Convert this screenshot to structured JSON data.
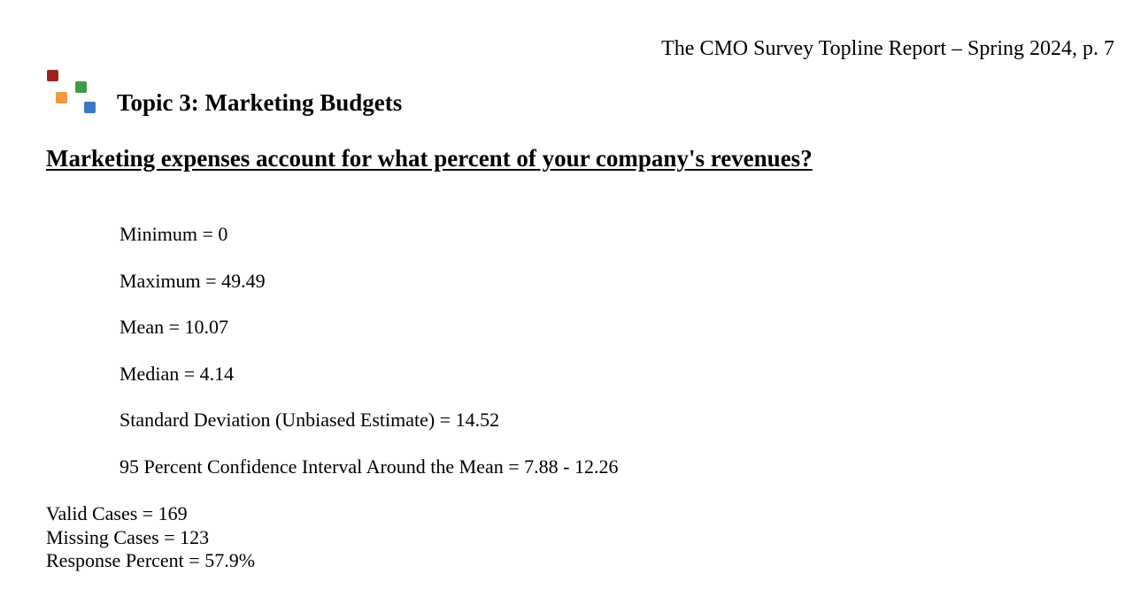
{
  "header": {
    "running_title": "The CMO Survey Topline Report – Spring 2024, p. 7"
  },
  "logo": {
    "colors": [
      "#9b2220",
      "#3f9b47",
      "#ee9a3c",
      "#3b78c2"
    ]
  },
  "topic": {
    "title": "Topic 3: Marketing Budgets"
  },
  "question": {
    "text": "Marketing expenses account for what percent of your company's revenues?"
  },
  "statistics": [
    "Minimum = 0",
    "Maximum = 49.49",
    "Mean = 10.07",
    "Median = 4.14",
    "Standard Deviation (Unbiased Estimate) = 14.52",
    "95 Percent Confidence Interval Around the Mean = 7.88 - 12.26"
  ],
  "cases": [
    "Valid Cases = 169",
    "Missing Cases = 123",
    "Response Percent = 57.9%"
  ]
}
